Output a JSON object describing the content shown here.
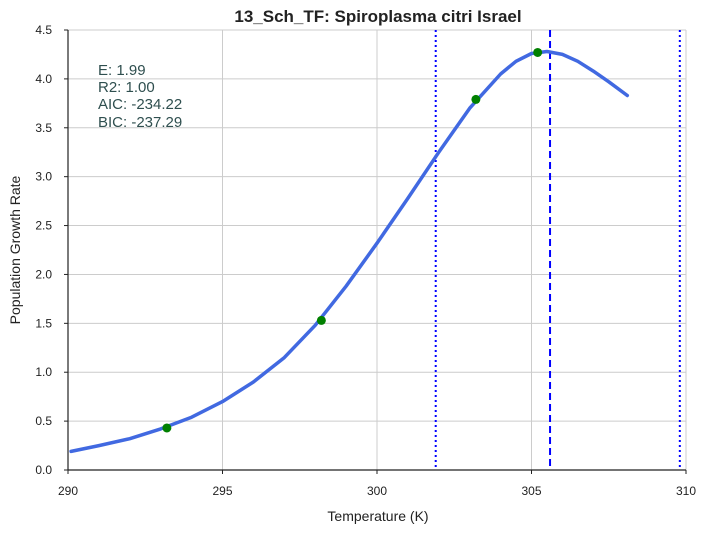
{
  "chart_data": {
    "type": "line",
    "title": "13_Sch_TF: Spiroplasma citri Israel",
    "xlabel": "Temperature (K)",
    "ylabel": "Population Growth Rate",
    "xlim": [
      290,
      310
    ],
    "ylim": [
      0,
      4.5
    ],
    "x_ticks": [
      "290",
      "295",
      "300",
      "305",
      "310"
    ],
    "y_ticks": [
      "0.0",
      "0.5",
      "1.0",
      "1.5",
      "2.0",
      "2.5",
      "3.0",
      "3.5",
      "4.0",
      "4.5"
    ],
    "x_tick_values": [
      290,
      295,
      300,
      305,
      310
    ],
    "y_tick_values": [
      0,
      0.5,
      1.0,
      1.5,
      2.0,
      2.5,
      3.0,
      3.5,
      4.0,
      4.5
    ],
    "grid": true,
    "stats": [
      "E:  1.99",
      "R2:  1.00",
      "AIC: -234.22",
      "BIC: -237.29"
    ],
    "series": [
      {
        "kind": "line",
        "color": "#4169e1",
        "x": [
          290.1,
          291,
          292,
          293,
          294,
          295,
          296,
          297,
          298,
          299,
          300,
          301,
          302,
          303,
          304,
          304.5,
          305,
          305.5,
          306,
          306.5,
          307,
          307.5,
          308.1
        ],
        "y": [
          0.19,
          0.25,
          0.32,
          0.42,
          0.54,
          0.7,
          0.9,
          1.15,
          1.48,
          1.88,
          2.32,
          2.78,
          3.25,
          3.7,
          4.05,
          4.18,
          4.26,
          4.28,
          4.25,
          4.18,
          4.08,
          3.97,
          3.83
        ]
      },
      {
        "kind": "points",
        "color": "#008000",
        "x": [
          293.2,
          298.2,
          303.2,
          305.2
        ],
        "y": [
          0.43,
          1.53,
          3.79,
          4.27
        ]
      }
    ],
    "vlines": [
      {
        "x": 301.9,
        "style": "dotted",
        "color": "#0000ff"
      },
      {
        "x": 305.6,
        "style": "dashed",
        "color": "#0000ff"
      },
      {
        "x": 309.8,
        "style": "dotted",
        "color": "#0000ff"
      }
    ]
  }
}
